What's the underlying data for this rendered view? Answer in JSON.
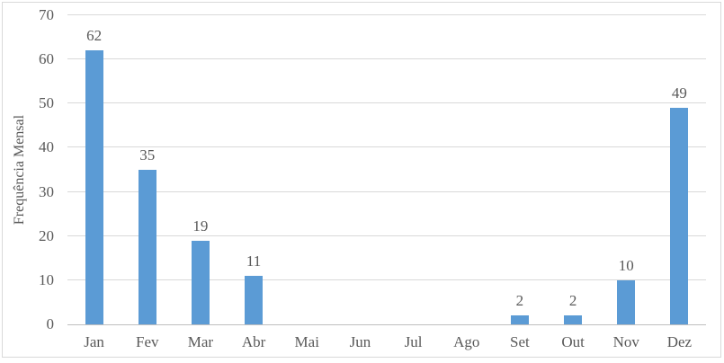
{
  "chart_data": {
    "type": "bar",
    "title": "",
    "xlabel": "",
    "ylabel": "Frequência Mensal",
    "categories": [
      "Jan",
      "Fev",
      "Mar",
      "Abr",
      "Mai",
      "Jun",
      "Jul",
      "Ago",
      "Set",
      "Out",
      "Nov",
      "Dez"
    ],
    "values": [
      62,
      35,
      19,
      11,
      0,
      0,
      0,
      0,
      2,
      2,
      10,
      49
    ],
    "data_labels": [
      "62",
      "35",
      "19",
      "11",
      "",
      "",
      "",
      "",
      "2",
      "2",
      "10",
      "49"
    ],
    "ylim": [
      0,
      70
    ],
    "yticks": [
      0,
      10,
      20,
      30,
      40,
      50,
      60,
      70
    ],
    "grid": true,
    "legend": false,
    "colors": {
      "bar": "#5b9bd5",
      "gridline": "#d9d9d9",
      "axis_line": "#bfbfbf",
      "text": "#595959",
      "outer_border": "#d9d9d9",
      "background": "#ffffff"
    }
  }
}
